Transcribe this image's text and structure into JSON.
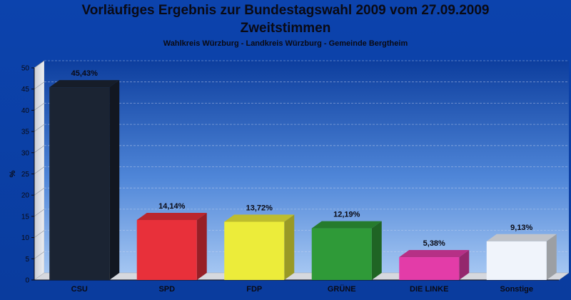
{
  "header": {
    "title_line1": "Vorläufiges Ergebnis zur Bundestagswahl 2009 vom 27.09.2009",
    "title_line2": "Zweitstimmen",
    "subtitle": "Wahlkreis Würzburg - Landkreis Würzburg - Gemeinde Bergtheim"
  },
  "chart_data": {
    "type": "bar",
    "title": "Vorläufiges Ergebnis zur Bundestagswahl 2009 vom 27.09.2009",
    "subtitle": "Zweitstimmen",
    "xlabel": "",
    "ylabel": "%",
    "ylim": [
      0,
      50
    ],
    "yticks": [
      0,
      5,
      10,
      15,
      20,
      25,
      30,
      35,
      40,
      45,
      50
    ],
    "grid": true,
    "legend": "none",
    "categories": [
      "CSU",
      "SPD",
      "FDP",
      "GRÜNE",
      "DIE LINKE",
      "Sonstige"
    ],
    "values": [
      45.43,
      14.14,
      13.72,
      12.19,
      5.38,
      9.13
    ],
    "value_labels": [
      "45,43%",
      "14,14%",
      "13,72%",
      "12,19%",
      "5,38%",
      "9,13%"
    ],
    "colors": [
      "#1b2433",
      "#e8303a",
      "#ecec3a",
      "#2f9a38",
      "#e33ca8",
      "#f0f4fb"
    ]
  }
}
